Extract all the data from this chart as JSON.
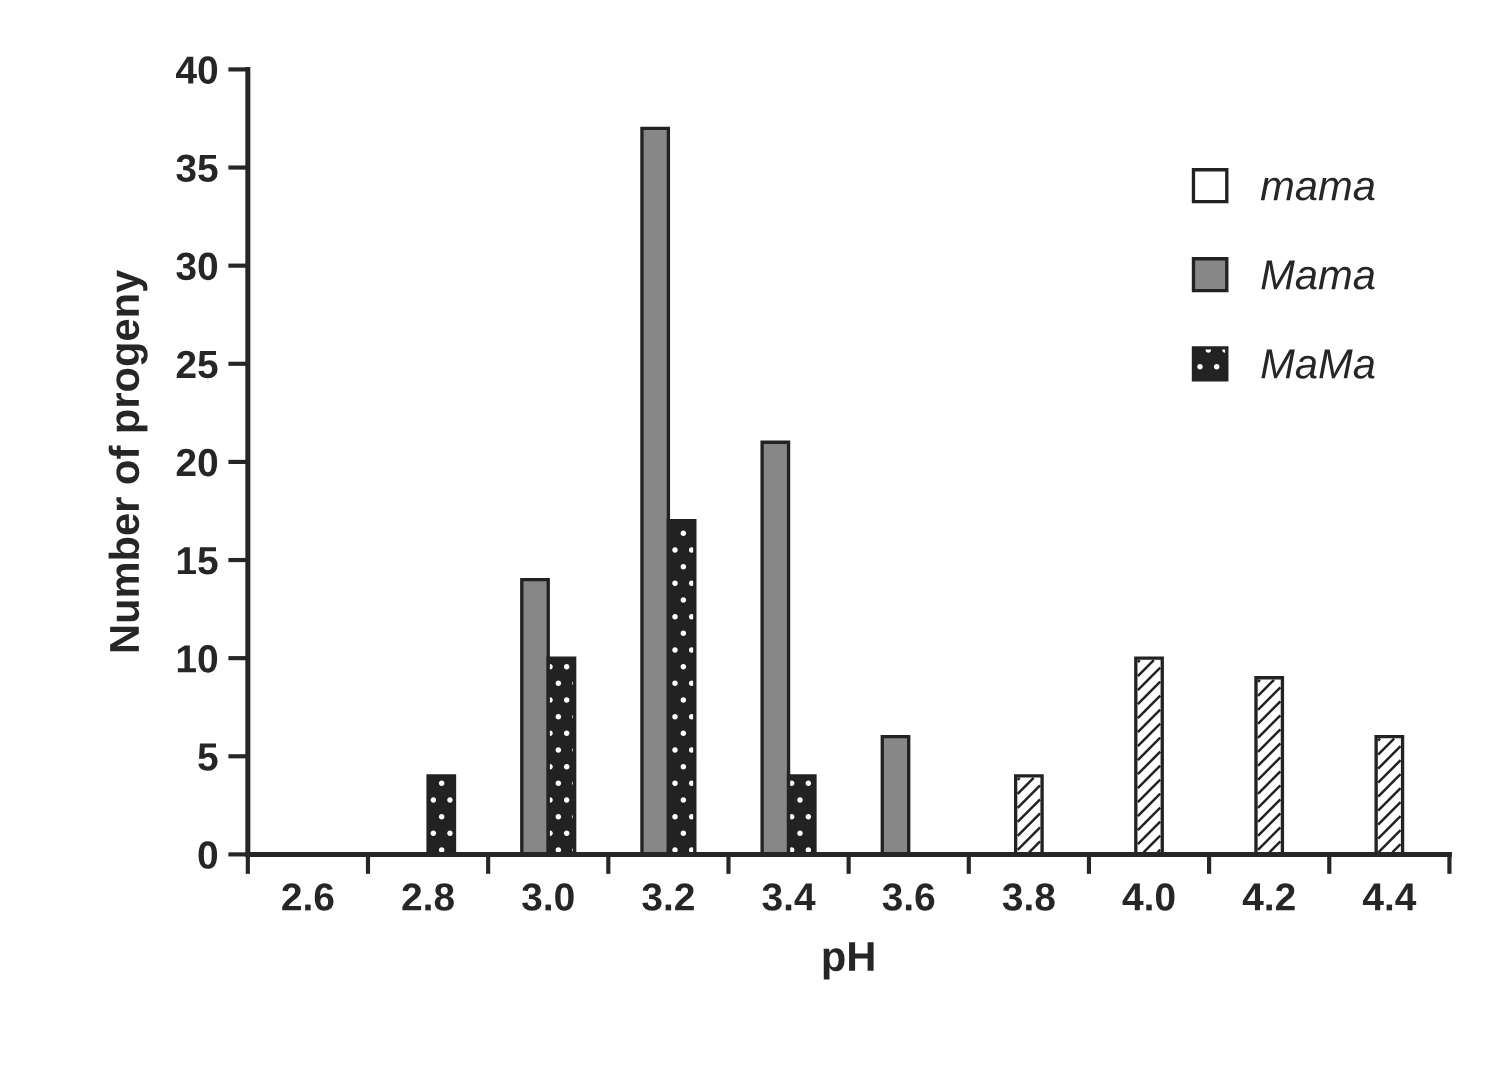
{
  "chart_data": {
    "type": "bar",
    "xlabel": "pH",
    "ylabel": "Number of progeny",
    "categories": [
      "2.6",
      "2.8",
      "3.0",
      "3.2",
      "3.4",
      "3.6",
      "3.8",
      "4.0",
      "4.2",
      "4.4"
    ],
    "series": [
      {
        "name": "mama",
        "color": "#ffffff",
        "values": [
          null,
          null,
          null,
          null,
          null,
          null,
          4,
          10,
          9,
          6
        ]
      },
      {
        "name": "Mama",
        "color": "#878787",
        "values": [
          null,
          null,
          14,
          37,
          21,
          6,
          null,
          null,
          null,
          null
        ]
      },
      {
        "name": "MaMa",
        "color": "#222222",
        "values": [
          null,
          4,
          10,
          17,
          4,
          null,
          null,
          null,
          null,
          null
        ]
      }
    ],
    "ylim": [
      0,
      40
    ],
    "yticks": [
      0,
      5,
      10,
      15,
      20,
      25,
      30,
      35,
      40
    ],
    "grid": false,
    "legend": "top right"
  }
}
